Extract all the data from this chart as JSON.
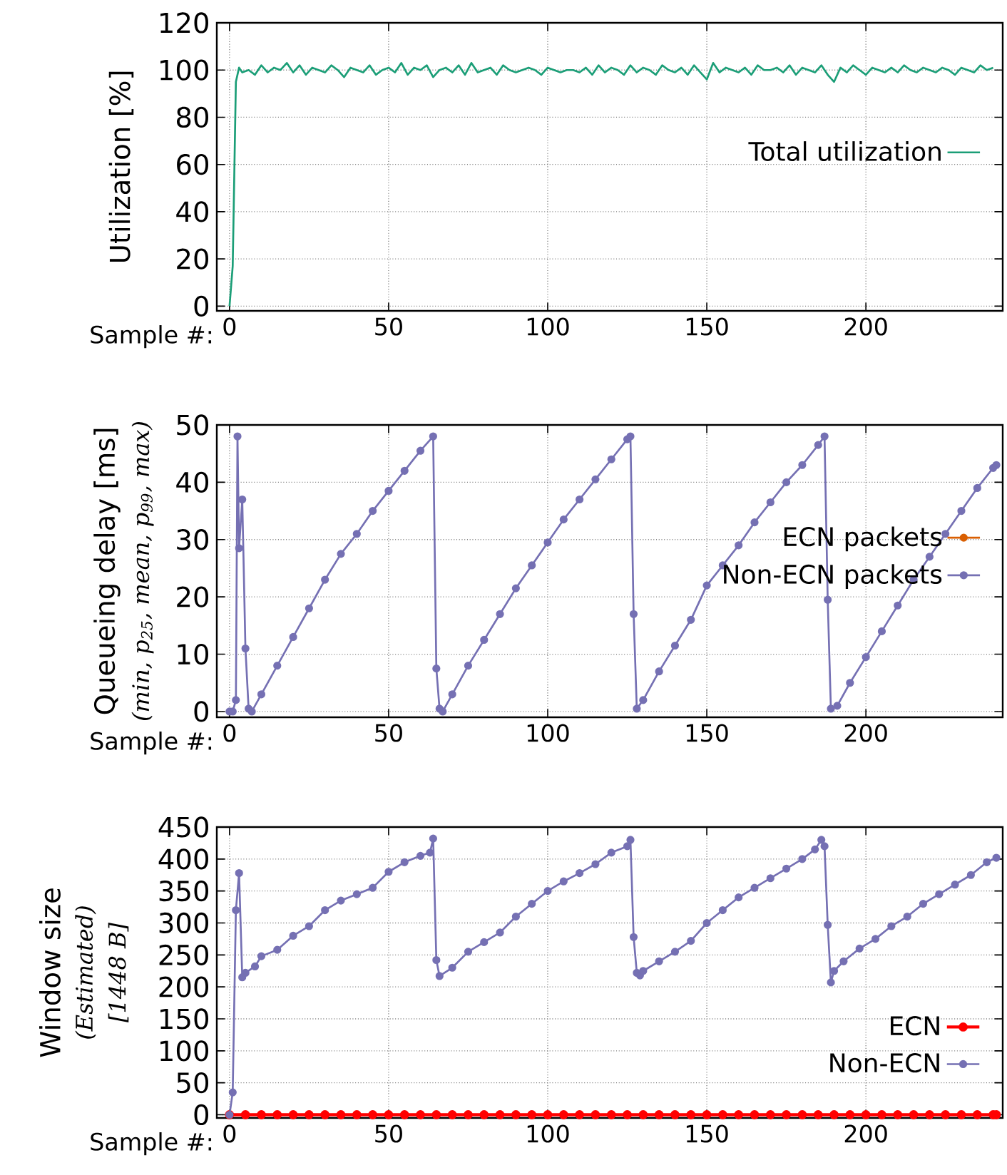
{
  "chart_data": [
    {
      "type": "line",
      "xlabel": "Sample #:",
      "ylabel": "Utilization [%]",
      "xlim": [
        -4,
        243
      ],
      "ylim": [
        -2,
        120
      ],
      "xticks": [
        0,
        50,
        100,
        150,
        200
      ],
      "yticks": [
        0,
        20,
        40,
        60,
        80,
        100,
        120
      ],
      "grid": true,
      "legend": "right",
      "series": [
        {
          "name": "Total utilization",
          "color": "#1b9e77",
          "x": [
            0,
            1,
            2,
            3,
            4,
            6,
            8,
            10,
            12,
            14,
            16,
            18,
            20,
            22,
            24,
            26,
            28,
            30,
            32,
            34,
            36,
            38,
            40,
            42,
            44,
            46,
            48,
            50,
            52,
            54,
            56,
            58,
            60,
            62,
            64,
            66,
            68,
            70,
            72,
            74,
            76,
            78,
            80,
            82,
            84,
            86,
            88,
            90,
            92,
            94,
            96,
            98,
            100,
            102,
            104,
            106,
            108,
            110,
            112,
            114,
            116,
            118,
            120,
            122,
            124,
            126,
            128,
            130,
            132,
            134,
            136,
            138,
            140,
            142,
            144,
            146,
            148,
            150,
            152,
            154,
            156,
            158,
            160,
            162,
            164,
            166,
            168,
            170,
            172,
            174,
            176,
            178,
            180,
            182,
            184,
            186,
            188,
            190,
            192,
            194,
            196,
            198,
            200,
            202,
            204,
            206,
            208,
            210,
            212,
            214,
            216,
            218,
            220,
            222,
            224,
            226,
            228,
            230,
            232,
            234,
            236,
            238,
            240
          ],
          "values": [
            0,
            17,
            95,
            101,
            99,
            100,
            98,
            102,
            99,
            101,
            100,
            103,
            99,
            102,
            98,
            101,
            100,
            99,
            102,
            100,
            97,
            101,
            100,
            99,
            102,
            98,
            100,
            101,
            99,
            103,
            98,
            101,
            100,
            102,
            97,
            100,
            101,
            99,
            102,
            98,
            103,
            99,
            100,
            101,
            98,
            102,
            100,
            99,
            100,
            101,
            100,
            98,
            101,
            100,
            99,
            100,
            100,
            99,
            101,
            98,
            102,
            99,
            101,
            100,
            98,
            102,
            99,
            101,
            100,
            98,
            102,
            100,
            99,
            101,
            98,
            102,
            99,
            96,
            103,
            99,
            101,
            100,
            99,
            101,
            98,
            102,
            100,
            100,
            101,
            99,
            102,
            98,
            101,
            100,
            99,
            102,
            98,
            95,
            101,
            99,
            102,
            100,
            98,
            101,
            100,
            99,
            101,
            99,
            102,
            100,
            99,
            101,
            100,
            99,
            101,
            100,
            98,
            101,
            100,
            99,
            102,
            100,
            101
          ]
        }
      ]
    },
    {
      "type": "line",
      "xlabel": "Sample #:",
      "ylabel": "Queueing delay [ms]",
      "annotations": [
        "(min, p$_{25}$, mean, p$_{99}$, max)"
      ],
      "xlim": [
        -4,
        243
      ],
      "ylim": [
        -1,
        50
      ],
      "xticks": [
        0,
        50,
        100,
        150,
        200
      ],
      "yticks": [
        0,
        10,
        20,
        30,
        40,
        50
      ],
      "grid": true,
      "legend": "right",
      "marker": "circle",
      "series": [
        {
          "name": "ECN packets",
          "color": "#d95f02"
        },
        {
          "name": "Non-ECN packets",
          "color": "#7570b3",
          "x": [
            0,
            1,
            2,
            2.5,
            3,
            4,
            5,
            6,
            7,
            10,
            15,
            20,
            25,
            30,
            35,
            40,
            45,
            50,
            55,
            60,
            64,
            65,
            66,
            67,
            70,
            75,
            80,
            85,
            90,
            95,
            100,
            105,
            110,
            115,
            120,
            125,
            126,
            127,
            128,
            130,
            135,
            140,
            145,
            150,
            155,
            160,
            165,
            170,
            175,
            180,
            185,
            187,
            188,
            189,
            191,
            195,
            200,
            205,
            210,
            215,
            220,
            225,
            230,
            235,
            240,
            241
          ],
          "values": [
            0,
            0,
            2,
            48,
            28.5,
            37,
            11,
            0.5,
            0,
            3,
            8,
            13,
            18,
            23,
            27.5,
            31,
            35,
            38.5,
            42,
            45.5,
            48,
            7.5,
            0.5,
            0,
            3,
            8,
            12.5,
            17,
            21.5,
            25.5,
            29.5,
            33.5,
            37,
            40.5,
            44,
            47.5,
            48,
            17,
            0.5,
            2,
            7,
            11.5,
            16,
            22,
            25.5,
            29,
            33,
            36.5,
            40,
            43,
            46.5,
            48,
            19.5,
            0.5,
            1,
            5,
            9.5,
            14,
            18.5,
            23,
            27,
            31,
            35,
            39,
            42.5,
            43
          ]
        }
      ]
    },
    {
      "type": "line",
      "xlabel": "Sample #:",
      "ylabel": "Window size",
      "annotations": [
        "(Estimated)",
        "[1448 B]"
      ],
      "xlim": [
        -4,
        243
      ],
      "ylim": [
        -5,
        450
      ],
      "xticks": [
        0,
        50,
        100,
        150,
        200
      ],
      "yticks": [
        0,
        50,
        100,
        150,
        200,
        250,
        300,
        350,
        400,
        450
      ],
      "grid": true,
      "legend": "bottom right",
      "marker": "circle",
      "series": [
        {
          "name": "ECN",
          "color": "#ff0000",
          "x": [
            0,
            5,
            10,
            15,
            20,
            25,
            30,
            35,
            40,
            45,
            50,
            55,
            60,
            65,
            70,
            75,
            80,
            85,
            90,
            95,
            100,
            105,
            110,
            115,
            120,
            125,
            130,
            135,
            140,
            145,
            150,
            155,
            160,
            165,
            170,
            175,
            180,
            185,
            190,
            195,
            200,
            205,
            210,
            215,
            220,
            225,
            230,
            235,
            240,
            241
          ],
          "values": [
            0,
            0,
            0,
            0,
            0,
            0,
            0,
            0,
            0,
            0,
            0,
            0,
            0,
            0,
            0,
            0,
            0,
            0,
            0,
            0,
            0,
            0,
            0,
            0,
            0,
            0,
            0,
            0,
            0,
            0,
            0,
            0,
            0,
            0,
            0,
            0,
            0,
            0,
            0,
            0,
            0,
            0,
            0,
            0,
            0,
            0,
            0,
            0,
            0,
            0
          ]
        },
        {
          "name": "Non-ECN",
          "color": "#7570b3",
          "x": [
            0,
            1,
            2,
            3,
            4,
            5,
            8,
            10,
            15,
            20,
            25,
            30,
            35,
            40,
            45,
            50,
            55,
            60,
            63,
            64,
            65,
            66,
            70,
            75,
            80,
            85,
            90,
            95,
            100,
            105,
            110,
            115,
            120,
            125,
            126,
            127,
            128,
            129,
            130,
            135,
            140,
            145,
            150,
            155,
            160,
            165,
            170,
            175,
            180,
            184,
            186,
            187,
            188,
            189,
            190,
            193,
            198,
            203,
            208,
            213,
            218,
            223,
            228,
            233,
            238,
            241
          ],
          "values": [
            0,
            35,
            320,
            378,
            215,
            222,
            232,
            248,
            258,
            280,
            295,
            320,
            335,
            345,
            355,
            380,
            395,
            405,
            410,
            432,
            242,
            217,
            230,
            255,
            270,
            285,
            310,
            330,
            350,
            365,
            378,
            392,
            410,
            420,
            430,
            278,
            222,
            218,
            225,
            240,
            255,
            272,
            300,
            320,
            340,
            355,
            370,
            385,
            400,
            415,
            430,
            420,
            297,
            207,
            225,
            240,
            260,
            275,
            295,
            310,
            330,
            345,
            360,
            375,
            395,
            402
          ]
        }
      ]
    }
  ]
}
